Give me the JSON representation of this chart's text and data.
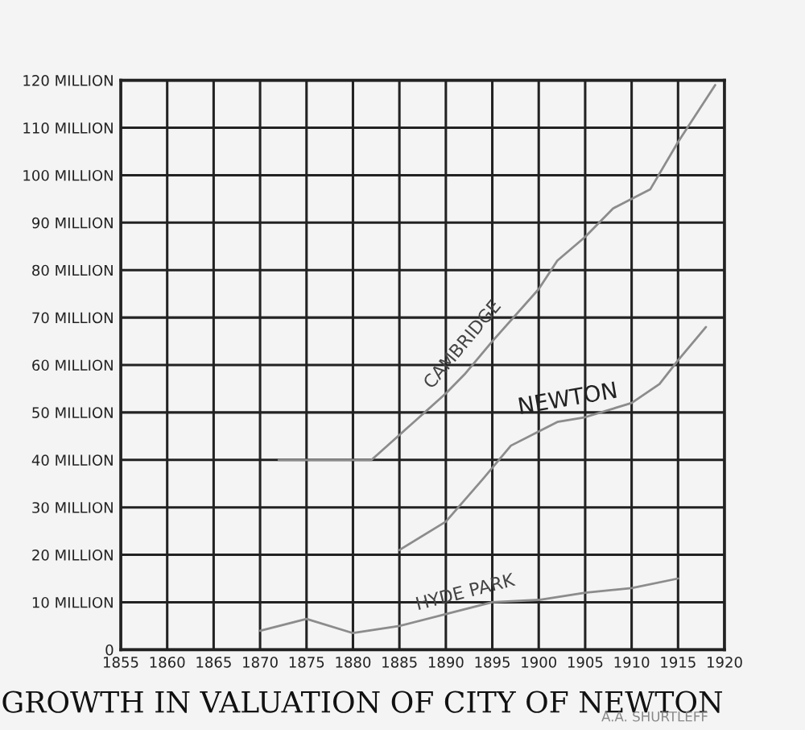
{
  "chart_data": {
    "type": "line",
    "title": "GROWTH IN VALUATION OF CITY OF NEWTON",
    "annotations": [
      "A.A. SHURTLEFF"
    ],
    "series": [
      {
        "name": "CAMBRIDGE",
        "color": "#8c8c8c",
        "x": [
          1872,
          1882,
          1886,
          1890,
          1892,
          1895,
          1900,
          1902,
          1905,
          1908,
          1912,
          1915,
          1919
        ],
        "values": [
          40,
          40,
          47,
          54,
          58,
          65,
          76,
          82,
          87,
          93,
          97,
          107,
          119
        ]
      },
      {
        "name": "NEWTON",
        "color": "#8c8c8c",
        "x": [
          1885,
          1890,
          1894,
          1897,
          1900,
          1902,
          1905,
          1910,
          1913,
          1915,
          1918
        ],
        "values": [
          21,
          27,
          36,
          43,
          46,
          48,
          49,
          52,
          56,
          61,
          68
        ]
      },
      {
        "name": "HYDE PARK",
        "color": "#8c8c8c",
        "x": [
          1870,
          1875,
          1880,
          1885,
          1890,
          1895,
          1900,
          1905,
          1910,
          1915
        ],
        "values": [
          4,
          6.5,
          3.5,
          5,
          7.5,
          10,
          10.5,
          12,
          13,
          15
        ]
      }
    ],
    "xlim": [
      1855,
      1920
    ],
    "xticks": [
      1855,
      1860,
      1865,
      1870,
      1875,
      1880,
      1885,
      1890,
      1895,
      1900,
      1905,
      1910,
      1915,
      1920
    ],
    "ylim": [
      0,
      120
    ],
    "yticks": [
      {
        "value": 0,
        "label": "0"
      },
      {
        "value": 10,
        "label": "10 MILLION"
      },
      {
        "value": 20,
        "label": "20 MILLION"
      },
      {
        "value": 30,
        "label": "30 MILLION"
      },
      {
        "value": 40,
        "label": "40 MILLION"
      },
      {
        "value": 50,
        "label": "50 MILLION"
      },
      {
        "value": 60,
        "label": "60 MILLION"
      },
      {
        "value": 70,
        "label": "70 MILLION"
      },
      {
        "value": 80,
        "label": "80 MILLION"
      },
      {
        "value": 90,
        "label": "90 MILLION"
      },
      {
        "value": 100,
        "label": "100 MILLION"
      },
      {
        "value": 110,
        "label": "110 MILLION"
      },
      {
        "value": 120,
        "label": "120 MILLION"
      }
    ],
    "grid": true,
    "legend": false,
    "marker": "none",
    "line_style": "solid"
  }
}
